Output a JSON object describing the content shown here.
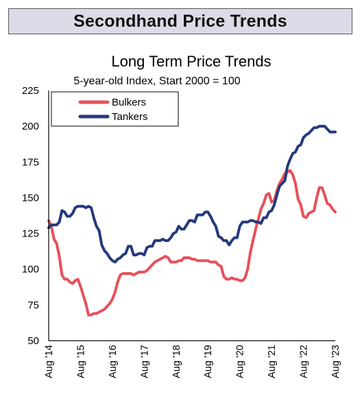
{
  "header": {
    "banner_title": "Secondhand Price Trends"
  },
  "chart_data": {
    "type": "line",
    "title": "Long Term Price Trends",
    "subtitle": "5-year-old Index, Start 2000 = 100",
    "xlabel": "",
    "ylabel": "",
    "ylim": [
      50,
      225
    ],
    "yticks": [
      50,
      75,
      100,
      125,
      150,
      175,
      200,
      225
    ],
    "xlim": [
      2014.583,
      2023.583
    ],
    "xtick_labels": [
      "Aug '14",
      "Aug '15",
      "Aug '16",
      "Aug '17",
      "Aug '18",
      "Aug '19",
      "Aug '20",
      "Aug '21",
      "Aug '22",
      "Aug '23"
    ],
    "xtick_values": [
      2014.583,
      2015.583,
      2016.583,
      2017.583,
      2018.583,
      2019.583,
      2020.583,
      2021.583,
      2022.583,
      2023.583
    ],
    "grid": false,
    "legend_position": "top-left",
    "series": [
      {
        "name": "Bulkers",
        "color": "#e8505b",
        "x": [
          2014.583,
          2014.667,
          2014.75,
          2014.833,
          2014.917,
          2015.0,
          2015.083,
          2015.167,
          2015.25,
          2015.333,
          2015.417,
          2015.5,
          2015.583,
          2015.667,
          2015.75,
          2015.833,
          2015.917,
          2016.0,
          2016.083,
          2016.167,
          2016.25,
          2016.333,
          2016.417,
          2016.5,
          2016.583,
          2016.667,
          2016.75,
          2016.833,
          2016.917,
          2017.0,
          2017.083,
          2017.167,
          2017.25,
          2017.333,
          2017.417,
          2017.5,
          2017.583,
          2017.667,
          2017.75,
          2017.833,
          2017.917,
          2018.0,
          2018.083,
          2018.167,
          2018.25,
          2018.333,
          2018.417,
          2018.5,
          2018.583,
          2018.667,
          2018.75,
          2018.833,
          2018.917,
          2019.0,
          2019.083,
          2019.167,
          2019.25,
          2019.333,
          2019.417,
          2019.5,
          2019.583,
          2019.667,
          2019.75,
          2019.833,
          2019.917,
          2020.0,
          2020.083,
          2020.167,
          2020.25,
          2020.333,
          2020.417,
          2020.5,
          2020.583,
          2020.667,
          2020.75,
          2020.833,
          2020.917,
          2021.0,
          2021.083,
          2021.167,
          2021.25,
          2021.333,
          2021.417,
          2021.5,
          2021.583,
          2021.667,
          2021.75,
          2021.833,
          2021.917,
          2022.0,
          2022.083,
          2022.167,
          2022.25,
          2022.333,
          2022.417,
          2022.5,
          2022.583,
          2022.667,
          2022.75,
          2022.833,
          2022.917,
          2023.0,
          2023.083,
          2023.167,
          2023.25,
          2023.333,
          2023.417,
          2023.5,
          2023.583
        ],
        "values": [
          134,
          130,
          121,
          118,
          109,
          96,
          93,
          93,
          91,
          90,
          92,
          93,
          88,
          82,
          76,
          68,
          68,
          69,
          69,
          70,
          71,
          72,
          74,
          76,
          79,
          84,
          91,
          96,
          97,
          97,
          97,
          97,
          96,
          97,
          98,
          98,
          98,
          99,
          101,
          103,
          105,
          106,
          107,
          108,
          109,
          108,
          105,
          105,
          105,
          106,
          106,
          108,
          108,
          108,
          107,
          107,
          106,
          106,
          106,
          106,
          106,
          105,
          105,
          105,
          103,
          102,
          95,
          93,
          93,
          94,
          93,
          93,
          92,
          92,
          94,
          100,
          112,
          120,
          128,
          135,
          142,
          146,
          152,
          153,
          147,
          148,
          155,
          160,
          163,
          167,
          168,
          169,
          166,
          160,
          149,
          145,
          137,
          136,
          139,
          140,
          141,
          150,
          157,
          157,
          152,
          146,
          145,
          142,
          140
        ]
      },
      {
        "name": "Tankers",
        "color": "#243a7c",
        "x": [
          2014.583,
          2014.667,
          2014.75,
          2014.833,
          2014.917,
          2015.0,
          2015.083,
          2015.167,
          2015.25,
          2015.333,
          2015.417,
          2015.5,
          2015.583,
          2015.667,
          2015.75,
          2015.833,
          2015.917,
          2016.0,
          2016.083,
          2016.167,
          2016.25,
          2016.333,
          2016.417,
          2016.5,
          2016.583,
          2016.667,
          2016.75,
          2016.833,
          2016.917,
          2017.0,
          2017.083,
          2017.167,
          2017.25,
          2017.333,
          2017.417,
          2017.5,
          2017.583,
          2017.667,
          2017.75,
          2017.833,
          2017.917,
          2018.0,
          2018.083,
          2018.167,
          2018.25,
          2018.333,
          2018.417,
          2018.5,
          2018.583,
          2018.667,
          2018.75,
          2018.833,
          2018.917,
          2019.0,
          2019.083,
          2019.167,
          2019.25,
          2019.333,
          2019.417,
          2019.5,
          2019.583,
          2019.667,
          2019.75,
          2019.833,
          2019.917,
          2020.0,
          2020.083,
          2020.167,
          2020.25,
          2020.333,
          2020.417,
          2020.5,
          2020.583,
          2020.667,
          2020.75,
          2020.833,
          2020.917,
          2021.0,
          2021.083,
          2021.167,
          2021.25,
          2021.333,
          2021.417,
          2021.5,
          2021.583,
          2021.667,
          2021.75,
          2021.833,
          2021.917,
          2022.0,
          2022.083,
          2022.167,
          2022.25,
          2022.333,
          2022.417,
          2022.5,
          2022.583,
          2022.667,
          2022.75,
          2022.833,
          2022.917,
          2023.0,
          2023.083,
          2023.167,
          2023.25,
          2023.333,
          2023.417,
          2023.5,
          2023.583
        ],
        "values": [
          129,
          131,
          131,
          131,
          133,
          141,
          140,
          137,
          137,
          139,
          143,
          144,
          144,
          144,
          143,
          144,
          143,
          136,
          130,
          127,
          117,
          113,
          111,
          108,
          106,
          105,
          107,
          108,
          110,
          111,
          116,
          116,
          110,
          110,
          111,
          111,
          110,
          115,
          116,
          116,
          120,
          120,
          120,
          121,
          120,
          120,
          122,
          125,
          126,
          130,
          128,
          128,
          131,
          134,
          134,
          133,
          138,
          138,
          138,
          140,
          140,
          137,
          133,
          130,
          123,
          122,
          120,
          120,
          117,
          120,
          122,
          122,
          130,
          133,
          133,
          133,
          134,
          134,
          133,
          133,
          132,
          136,
          136,
          140,
          141,
          145,
          152,
          158,
          160,
          162,
          172,
          177,
          181,
          182,
          186,
          187,
          192,
          194,
          195,
          197,
          199,
          199,
          200,
          200,
          200,
          198,
          196,
          196,
          196
        ]
      }
    ]
  }
}
